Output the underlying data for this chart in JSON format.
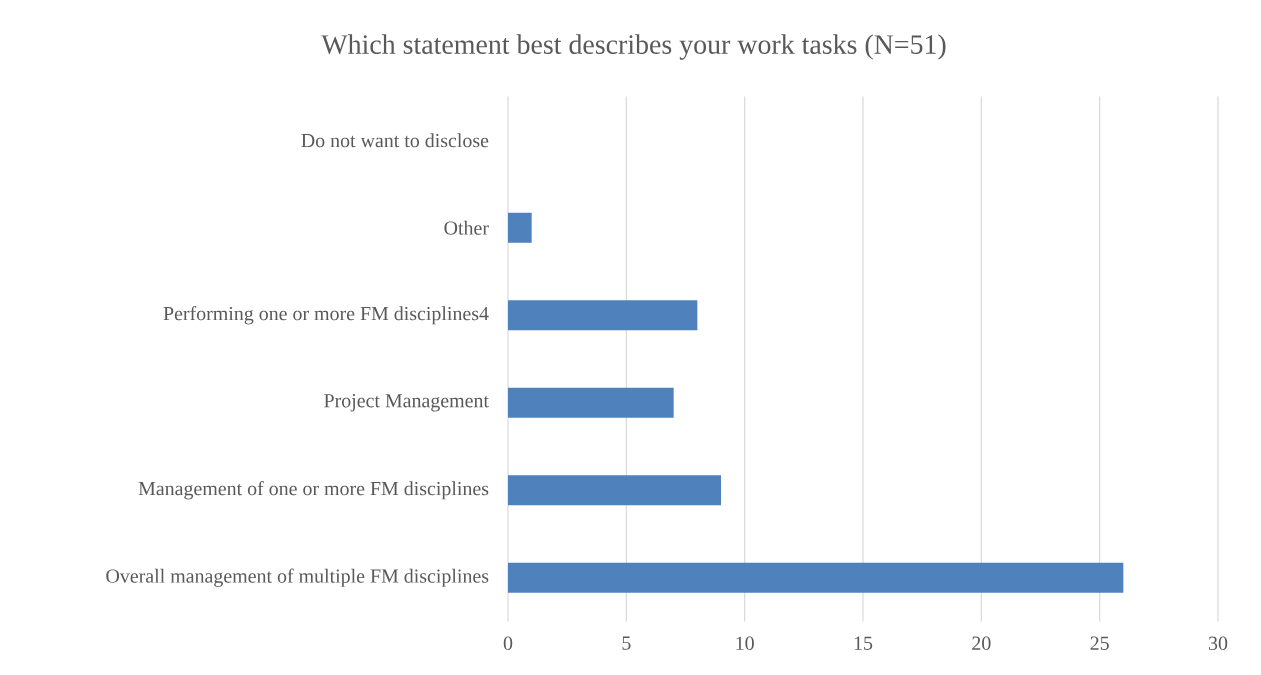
{
  "chart_data": {
    "type": "bar",
    "orientation": "horizontal",
    "title": "Which statement best describes your work tasks (N=51)",
    "categories": [
      "Do not want to disclose",
      "Other",
      "Performing one or more FM disciplines4",
      "Project Management",
      "Management of one or more FM disciplines",
      "Overall management of multiple FM disciplines"
    ],
    "values": [
      0,
      1,
      8,
      7,
      9,
      26
    ],
    "color": "#4f81bd",
    "xlim": [
      0,
      30
    ],
    "xticks": [
      0,
      5,
      10,
      15,
      20,
      25,
      30
    ],
    "grid": "x"
  }
}
